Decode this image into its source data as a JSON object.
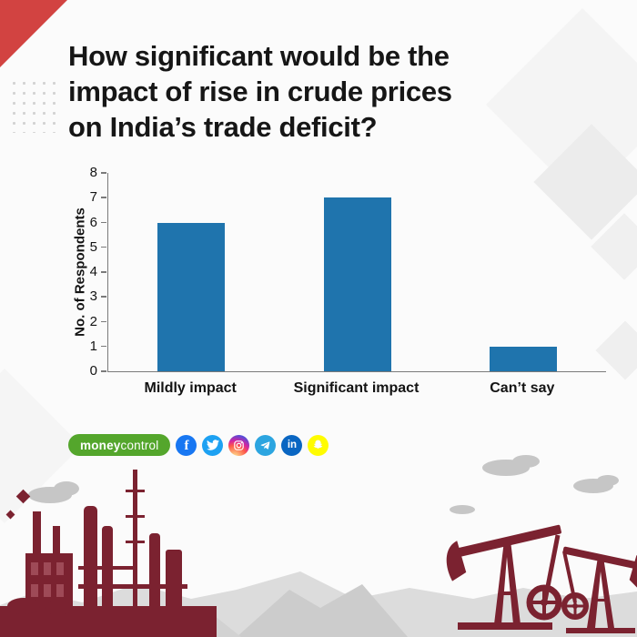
{
  "title": {
    "lines": [
      "How significant would be the",
      "impact of rise in crude prices",
      "on India’s trade deficit?"
    ]
  },
  "chart_data": {
    "type": "bar",
    "title": "How significant would be the impact of rise in crude prices on India’s trade deficit?",
    "categories": [
      "Mildly impact",
      "Significant impact",
      "Can’t say"
    ],
    "values": [
      6,
      7,
      1
    ],
    "xlabel": "",
    "ylabel": "No. of Respondents",
    "ylim": [
      0,
      8
    ],
    "yticks": [
      0,
      1,
      2,
      3,
      4,
      5,
      6,
      7,
      8
    ],
    "grid": false,
    "legend": false
  },
  "footer": {
    "brand_money": "money",
    "brand_control": "control",
    "facebook_glyph": "f",
    "linkedin_glyph": "in",
    "social_icons": [
      "facebook-icon",
      "twitter-icon",
      "instagram-icon",
      "telegram-icon",
      "linkedin-icon",
      "snapchat-icon"
    ]
  },
  "colors": {
    "bar_blue": "#1f74ad",
    "accent_red": "#d24341",
    "silhouette_maroon": "#7b2230",
    "silhouette_maroon_light": "#9e4a57",
    "brand_green": "#54a62c",
    "facebook_blue": "#1877f2",
    "twitter_blue": "#1da1f2",
    "telegram_blue": "#2ca5e0",
    "linkedin_blue": "#0a66c2",
    "snapchat_yellow": "#fffc00"
  }
}
